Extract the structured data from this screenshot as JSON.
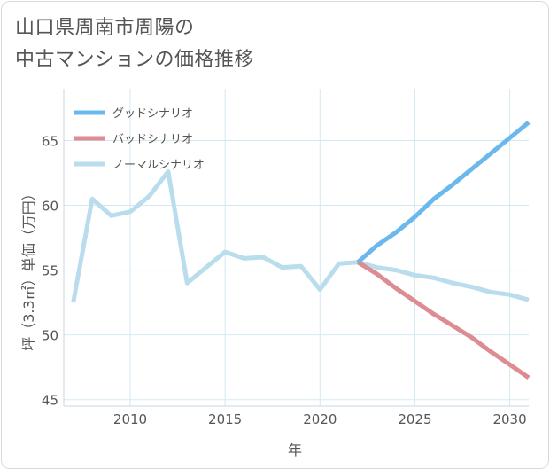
{
  "title_line1": "山口県周南市周陽の",
  "title_line2": "中古マンションの価格推移",
  "chart_data": {
    "type": "line",
    "xlabel": "年",
    "ylabel": "坪（3.3㎡）単価（万円）",
    "xlim": [
      2006.5,
      2031
    ],
    "ylim": [
      44.5,
      69
    ],
    "xticks": [
      2010,
      2015,
      2020,
      2025,
      2030
    ],
    "yticks": [
      45,
      50,
      55,
      60,
      65
    ],
    "grid": true,
    "legend_position": "top-left",
    "series": [
      {
        "name": "グッドシナリオ",
        "color": "#6bb8ec",
        "x": [
          2022,
          2023,
          2024,
          2025,
          2026,
          2027,
          2028,
          2029,
          2030,
          2031
        ],
        "values": [
          55.6,
          56.9,
          57.9,
          59.1,
          60.5,
          61.6,
          62.8,
          64.0,
          65.2,
          66.4
        ]
      },
      {
        "name": "バッドシナリオ",
        "color": "#dc8c92",
        "x": [
          2022,
          2023,
          2024,
          2025,
          2026,
          2027,
          2028,
          2029,
          2030,
          2031
        ],
        "values": [
          55.6,
          54.7,
          53.6,
          52.6,
          51.6,
          50.7,
          49.8,
          48.7,
          47.7,
          46.7
        ]
      },
      {
        "name": "ノーマルシナリオ",
        "color": "#b9dded",
        "x": [
          2007,
          2008,
          2009,
          2010,
          2011,
          2012,
          2013,
          2014,
          2015,
          2016,
          2017,
          2018,
          2019,
          2020,
          2021,
          2022,
          2023,
          2024,
          2025,
          2026,
          2027,
          2028,
          2029,
          2030,
          2031
        ],
        "values": [
          52.5,
          60.5,
          59.2,
          59.5,
          60.7,
          62.6,
          54.0,
          55.2,
          56.4,
          55.9,
          56.0,
          55.2,
          55.3,
          53.5,
          55.5,
          55.6,
          55.2,
          55.0,
          54.6,
          54.4,
          54.0,
          53.7,
          53.3,
          53.1,
          52.7
        ]
      }
    ]
  }
}
